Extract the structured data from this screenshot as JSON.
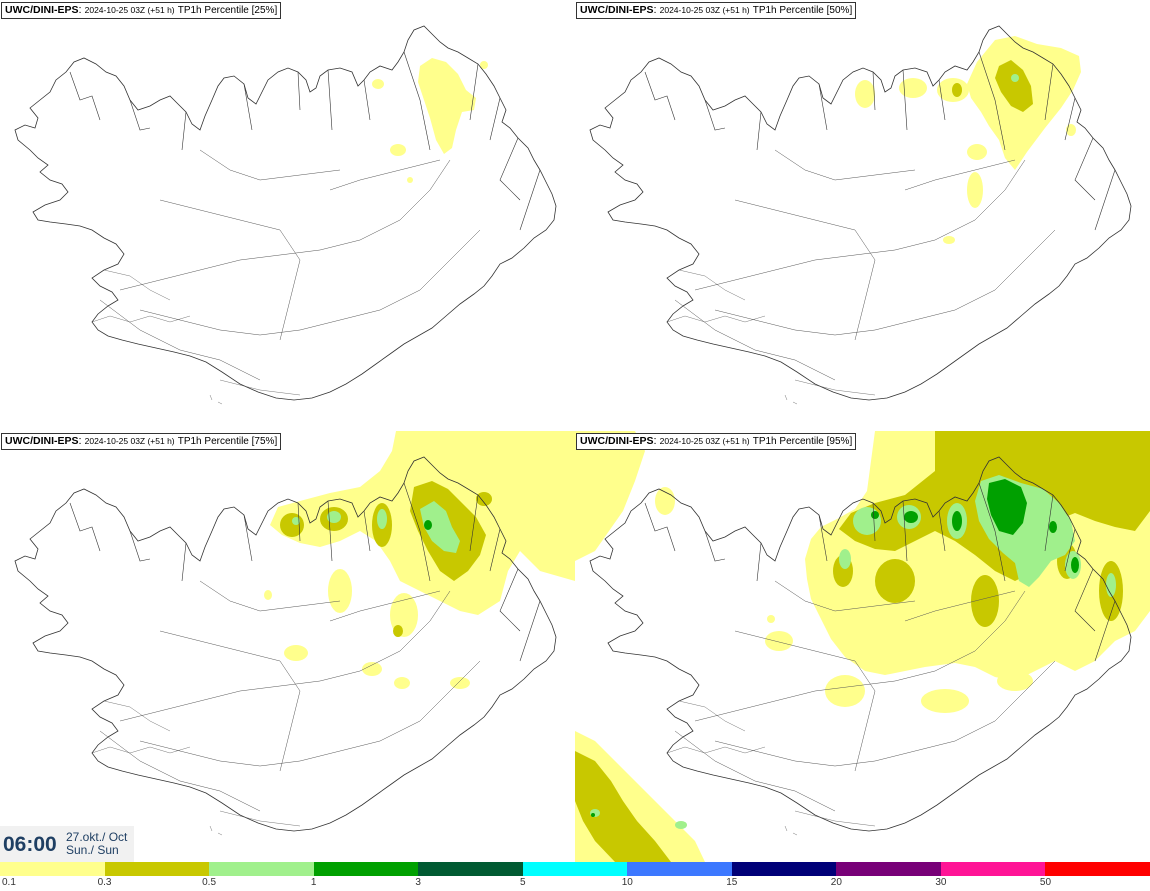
{
  "panels": [
    {
      "source": "UWC/DINI-EPS",
      "run": "2024-10-25 03Z (+51 h)",
      "variable": "TP1h Percentile [25%]"
    },
    {
      "source": "UWC/DINI-EPS",
      "run": "2024-10-25 03Z (+51 h)",
      "variable": "TP1h Percentile [50%]"
    },
    {
      "source": "UWC/DINI-EPS",
      "run": "2024-10-25 03Z (+51 h)",
      "variable": "TP1h Percentile [75%]"
    },
    {
      "source": "UWC/DINI-EPS",
      "run": "2024-10-25 03Z (+51 h)",
      "variable": "TP1h Percentile [95%]"
    }
  ],
  "valid_time": {
    "time": "06:00",
    "date_line1": "27.okt./ Oct",
    "date_line2": "Sun./ Sun"
  },
  "colorbar": {
    "labels": [
      "0.1",
      "0.3",
      "0.5",
      "1",
      "3",
      "5",
      "10",
      "15",
      "20",
      "30",
      "50"
    ],
    "colors": [
      "#ffff8c",
      "#c8c800",
      "#a0f08c",
      "#00a000",
      "#005a32",
      "#00ffff",
      "#3c78ff",
      "#000078",
      "#780078",
      "#ff1496",
      "#ff0000"
    ]
  },
  "map_colors": {
    "level1": "#ffff8c",
    "level2": "#c8c800",
    "level3": "#a0f08c",
    "level4": "#00a000",
    "coastline": "#333333",
    "roads": "#555555"
  }
}
